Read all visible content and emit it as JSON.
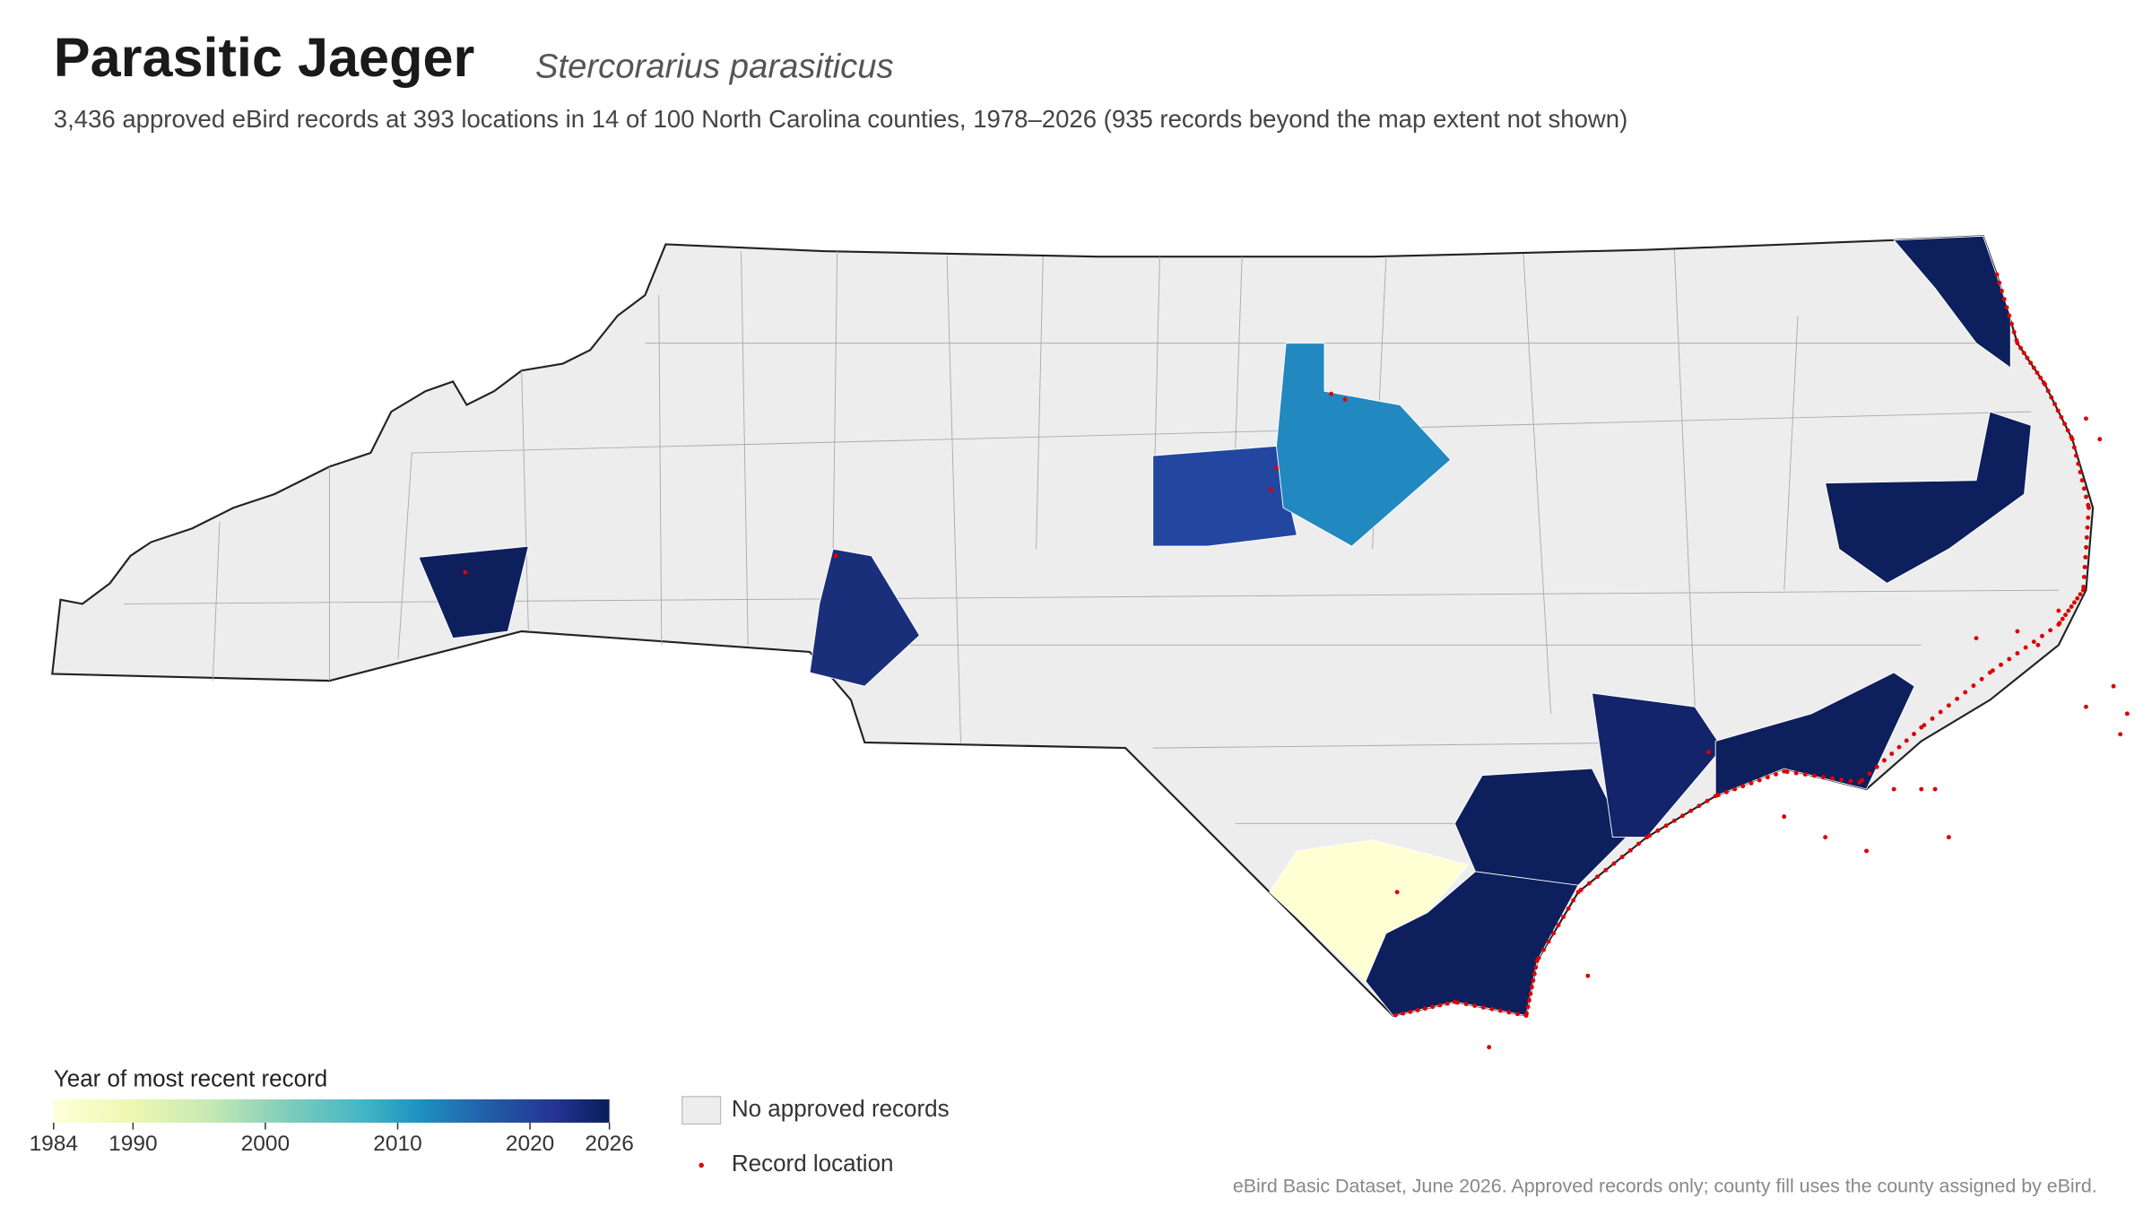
{
  "header": {
    "title": "Parasitic Jaeger",
    "scientific_name": "Stercorarius parasiticus",
    "subtitle": "3,436 approved eBird records at 393 locations in 14 of 100 North Carolina counties, 1978–2026 (935 records beyond the map extent not shown)"
  },
  "legend": {
    "title": "Year of most recent record",
    "range": [
      1984,
      2026
    ],
    "ticks": [
      1984,
      1990,
      2000,
      2010,
      2020,
      2026
    ],
    "no_records": "No approved records",
    "record_location": "Record location"
  },
  "footer": {
    "source": "eBird Basic Dataset, June 2026. Approved records only; county fill uses the county assigned by eBird."
  }
}
